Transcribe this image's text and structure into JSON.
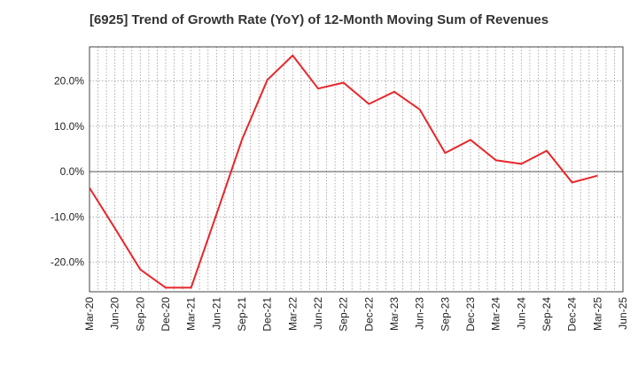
{
  "chart_data": {
    "type": "line",
    "title": "[6925]  Trend of Growth Rate (YoY) of 12-Month Moving Sum of Revenues",
    "xlabel": "",
    "ylabel": "",
    "x_tick_labels": [
      "Mar-20",
      "Jun-20",
      "Sep-20",
      "Dec-20",
      "Mar-21",
      "Jun-21",
      "Sep-21",
      "Dec-21",
      "Mar-22",
      "Jun-22",
      "Sep-22",
      "Dec-22",
      "Mar-23",
      "Jun-23",
      "Sep-23",
      "Dec-23",
      "Mar-24",
      "Jun-24",
      "Sep-24",
      "Dec-24",
      "Mar-25",
      "Jun-25"
    ],
    "y_tick_values": [
      -20,
      -10,
      0,
      10,
      20
    ],
    "y_tick_labels": [
      "-20.0%",
      "-10.0%",
      "0.0%",
      "10.0%",
      "20.0%"
    ],
    "ylim": [
      -26.5,
      27.5
    ],
    "grid": true,
    "series": [
      {
        "color": "#e8262b",
        "x": [
          "Mar-20",
          "Jun-20",
          "Sep-20",
          "Dec-20",
          "Mar-21",
          "Jun-21",
          "Sep-21",
          "Dec-21",
          "Mar-22",
          "Jun-22",
          "Sep-22",
          "Dec-22",
          "Mar-23",
          "Jun-23",
          "Sep-23",
          "Dec-23",
          "Mar-24",
          "Jun-24",
          "Sep-24",
          "Dec-24",
          "Mar-25"
        ],
        "values": [
          -3.6,
          -12.5,
          -21.6,
          -25.6,
          -25.6,
          -9.4,
          7.0,
          20.2,
          25.6,
          18.3,
          19.6,
          14.9,
          17.6,
          13.7,
          4.1,
          7.0,
          2.5,
          1.7,
          4.6,
          -2.4,
          -0.9
        ]
      }
    ]
  }
}
